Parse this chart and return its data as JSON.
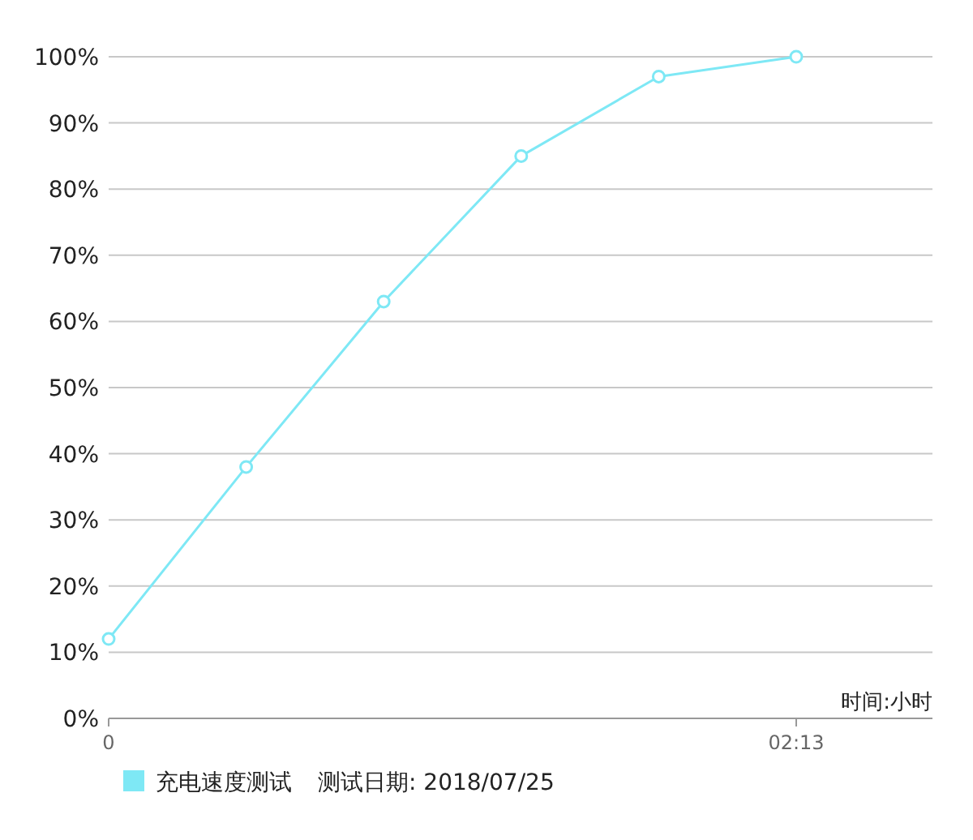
{
  "chart_data": {
    "type": "line",
    "categories": [
      "0",
      null,
      null,
      null,
      null,
      "02:13"
    ],
    "series": [
      {
        "name": "充电速度测试",
        "color": "#7ee8f5",
        "values": [
          12,
          38,
          63,
          85,
          97,
          100
        ]
      }
    ],
    "xlabel": "时间:小时",
    "ylim": [
      0,
      100
    ],
    "yticks": [
      {
        "value": 0,
        "label": "0%"
      },
      {
        "value": 10,
        "label": "10%"
      },
      {
        "value": 20,
        "label": "20%"
      },
      {
        "value": 30,
        "label": "30%"
      },
      {
        "value": 40,
        "label": "40%"
      },
      {
        "value": 50,
        "label": "50%"
      },
      {
        "value": 60,
        "label": "60%"
      },
      {
        "value": 70,
        "label": "70%"
      },
      {
        "value": 80,
        "label": "80%"
      },
      {
        "value": 90,
        "label": "90%"
      },
      {
        "value": 100,
        "label": "100%"
      }
    ],
    "grid": "y",
    "marker": "circle",
    "line_style": "solid",
    "legend": "bottom left",
    "annotations": [
      "测试日期: 2018/07/25"
    ]
  }
}
